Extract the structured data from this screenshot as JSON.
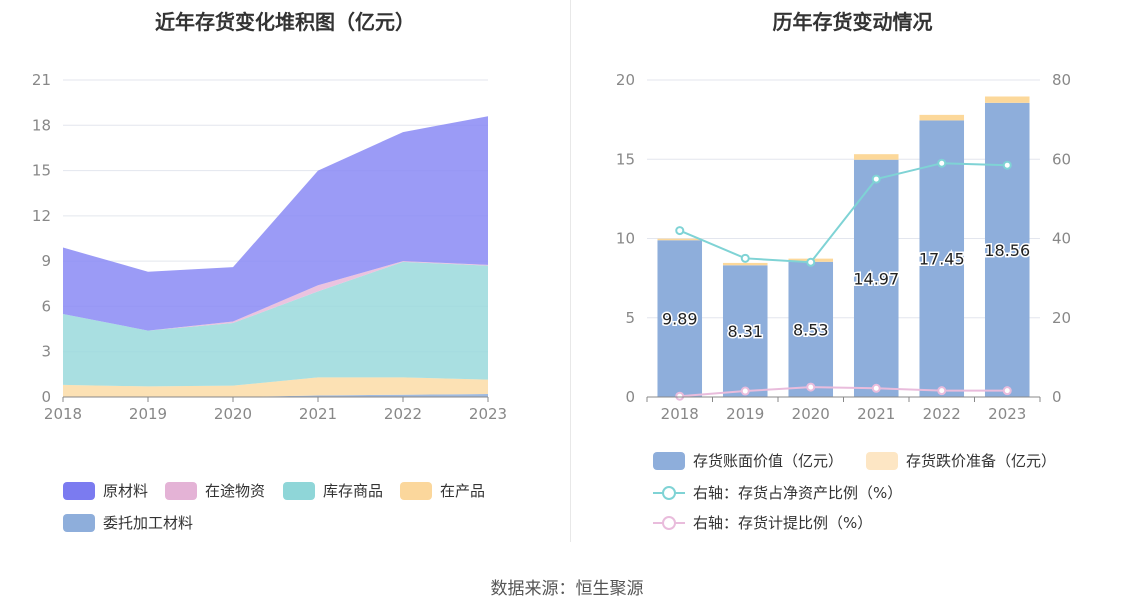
{
  "source_label": "数据来源：恒生聚源",
  "chart_data": [
    {
      "type": "area",
      "stacked": true,
      "title": "近年存货变化堆积图（亿元）",
      "x": [
        "2018",
        "2019",
        "2020",
        "2021",
        "2022",
        "2023"
      ],
      "ylim": [
        0,
        21
      ],
      "yticks": [
        0,
        3,
        6,
        9,
        12,
        15,
        18,
        21
      ],
      "grid": true,
      "legend_position": "bottom",
      "series": [
        {
          "name": "委托加工材料",
          "color": "#8eaedb",
          "values": [
            0,
            0,
            0,
            0.1,
            0.15,
            0.2
          ]
        },
        {
          "name": "在产品",
          "color": "#fcdca7",
          "values": [
            0.8,
            0.7,
            0.75,
            1.2,
            1.15,
            0.95
          ]
        },
        {
          "name": "库存商品",
          "color": "#9ad9dc",
          "values": [
            4.7,
            3.7,
            4.15,
            5.7,
            7.65,
            7.55
          ]
        },
        {
          "name": "在途物资",
          "color": "#e7b9d9",
          "values": [
            0,
            0,
            0.1,
            0.4,
            0.05,
            0.05
          ]
        },
        {
          "name": "原材料",
          "color": "#8a8af5",
          "values": [
            4.4,
            3.9,
            3.6,
            7.6,
            8.55,
            9.85
          ]
        }
      ],
      "legend": [
        {
          "name": "原材料",
          "color": "#7b7bf0"
        },
        {
          "name": "在途物资",
          "color": "#e4b3d6"
        },
        {
          "name": "库存商品",
          "color": "#8fd6d8"
        },
        {
          "name": "在产品",
          "color": "#fbd79c"
        },
        {
          "name": "委托加工材料",
          "color": "#8eaedb"
        }
      ]
    },
    {
      "type": "bar",
      "stacked": true,
      "title": "历年存货变动情况",
      "categories": [
        "2018",
        "2019",
        "2020",
        "2021",
        "2022",
        "2023"
      ],
      "ylim": [
        0,
        20
      ],
      "yticks": [
        0,
        5,
        10,
        15,
        20
      ],
      "y2lim": [
        0,
        80
      ],
      "y2ticks": [
        0,
        20,
        40,
        60,
        80
      ],
      "grid": true,
      "legend_position": "bottom",
      "series": [
        {
          "name": "存货账面价值（亿元）",
          "color": "#8eaedb",
          "values": [
            9.89,
            8.31,
            8.53,
            14.97,
            17.45,
            18.56
          ],
          "labels": [
            "9.89",
            "8.31",
            "8.53",
            "14.97",
            "17.45",
            "18.56"
          ]
        },
        {
          "name": "存货跌价准备（亿元）",
          "color": "#fde6c4",
          "values": [
            0.1,
            0.15,
            0.2,
            0.35,
            0.35,
            0.4
          ]
        }
      ],
      "line_series": [
        {
          "name": "右轴：存货占净资产比例（%）",
          "color": "#7fd3d5",
          "values": [
            42,
            35,
            34,
            55,
            59,
            58.5
          ]
        },
        {
          "name": "右轴：存货计提比例（%）",
          "color": "#e9bcdc",
          "values": [
            0.2,
            1.5,
            2.5,
            2.2,
            1.6,
            1.6
          ]
        }
      ]
    }
  ]
}
